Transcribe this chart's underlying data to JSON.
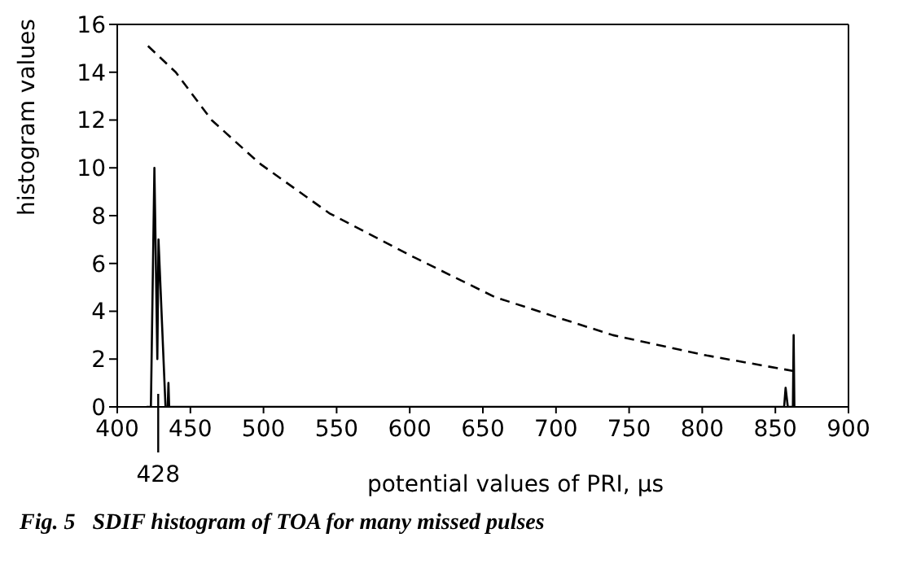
{
  "chart_data": {
    "type": "line",
    "xlabel": "potential values of PRI, μs",
    "ylabel": "histogram values",
    "xlim": [
      400,
      900
    ],
    "xticks": [
      400,
      450,
      500,
      550,
      600,
      650,
      700,
      750,
      800,
      850,
      900
    ],
    "ylim": [
      0,
      16
    ],
    "yticks": [
      0,
      2,
      4,
      6,
      8,
      10,
      12,
      14,
      16
    ],
    "grid": false,
    "legend": false,
    "marker": "none",
    "series": [
      {
        "color": "#000000",
        "line_style": "solid",
        "x": [
          420,
          423,
          425.4,
          427.4,
          428.2,
          433,
          434.5,
          435,
          435.5,
          856,
          857,
          858.5,
          862,
          862.5,
          863
        ],
        "values": [
          0,
          0,
          10,
          2,
          7,
          0,
          0,
          1,
          0,
          0,
          0.8,
          0,
          0,
          3,
          0
        ]
      },
      {
        "color": "#000000",
        "line_style": "dashed",
        "x": [
          421,
          440,
          464.5,
          497,
          545,
          601.6,
          658,
          698,
          739,
          803,
          862.5
        ],
        "values": [
          15.1,
          14,
          12,
          10.2,
          8.1,
          6.3,
          4.6,
          3.8,
          3,
          2.15,
          1.5
        ]
      }
    ],
    "annotations": [
      {
        "text": "428",
        "x": 428,
        "y": 0
      },
      "Fig. 5   SDIF histogram of TOA for many missed pulses"
    ]
  }
}
